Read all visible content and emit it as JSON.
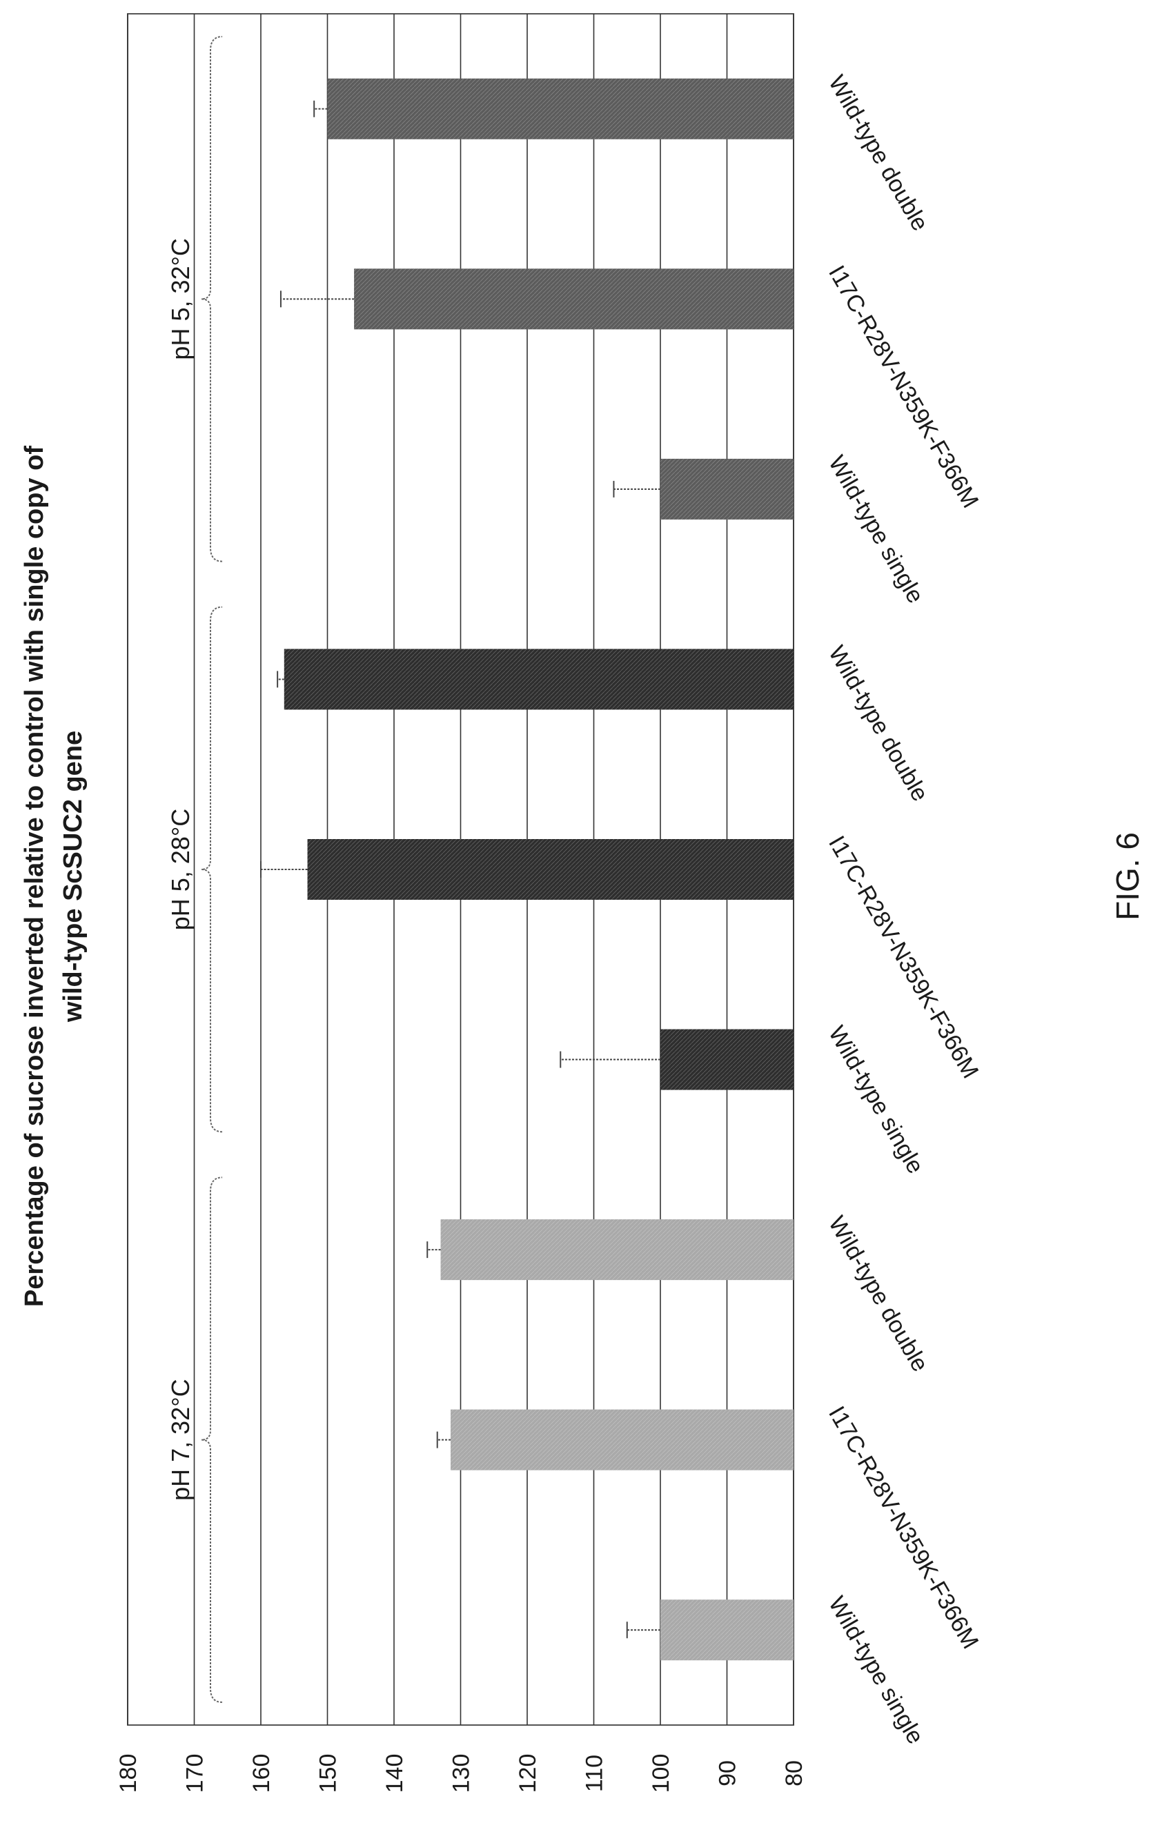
{
  "figure_label": "FIG. 6",
  "chart_data": {
    "type": "bar",
    "title_lines": [
      "Percentage of sucrose inverted relative to control with single copy of",
      "wild-type ScSUC2 gene"
    ],
    "xlabel": "",
    "ylabel": "",
    "ylim": [
      80,
      180
    ],
    "y_ticks": [
      80,
      90,
      100,
      110,
      120,
      130,
      140,
      150,
      160,
      170,
      180
    ],
    "grid": true,
    "categories": [
      "Wild-type single",
      "I17C-R28V-N359K-F366M",
      "Wild-type double",
      "Wild-type single",
      "I17C-R28V-N359K-F366M",
      "Wild-type double",
      "Wild-type single",
      "I17C-R28V-N359K-F366M",
      "Wild-type double"
    ],
    "values": [
      100,
      131.5,
      133,
      100,
      153,
      156.5,
      100,
      146,
      150
    ],
    "errors": [
      5,
      2,
      2,
      15,
      7,
      1,
      7,
      11,
      2
    ],
    "groups": [
      {
        "label": "pH 7, 32°C",
        "bars": [
          0,
          1,
          2
        ],
        "color": "#a9a9a9"
      },
      {
        "label": "pH 5, 28°C",
        "bars": [
          3,
          4,
          5
        ],
        "color": "#2e2e2e"
      },
      {
        "label": "pH 5, 32°C",
        "bars": [
          6,
          7,
          8
        ],
        "color": "#5c5c5c"
      }
    ]
  }
}
